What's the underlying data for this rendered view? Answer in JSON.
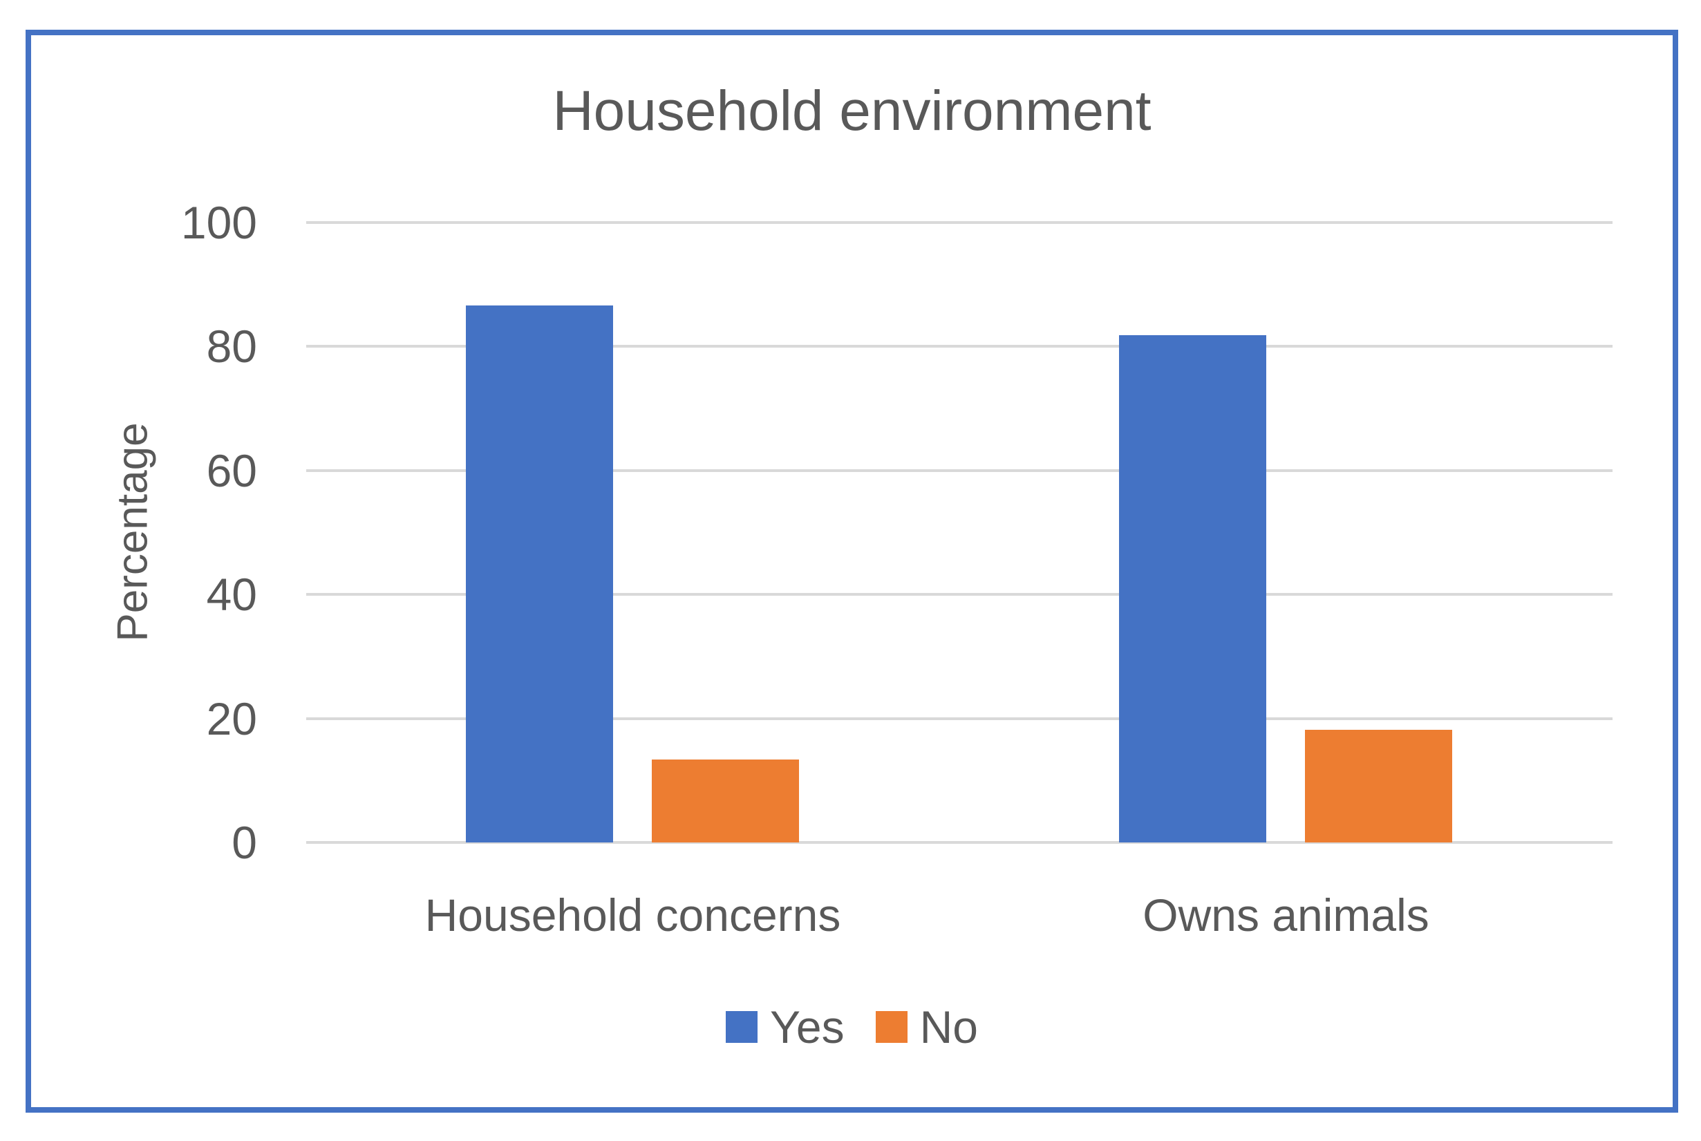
{
  "chart_data": {
    "type": "bar",
    "title": "Household environment",
    "xlabel": "",
    "ylabel": "Percentage",
    "categories": [
      "Household concerns",
      "Owns animals"
    ],
    "series": [
      {
        "name": "Yes",
        "color": "#4472C4",
        "values": [
          86.6,
          81.8
        ]
      },
      {
        "name": "No",
        "color": "#ED7D31",
        "values": [
          13.4,
          18.2
        ]
      }
    ],
    "ylim": [
      0,
      100
    ],
    "yticks": [
      0,
      20,
      40,
      60,
      80,
      100
    ],
    "grid": "horizontal",
    "legend_position": "bottom",
    "colors": {
      "text": "#595959",
      "gridline": "#D9D9D9",
      "chart_border": "#4472C4",
      "bar_yes": "#4472C4",
      "bar_no": "#ED7D31",
      "background": "#FFFFFF"
    }
  }
}
